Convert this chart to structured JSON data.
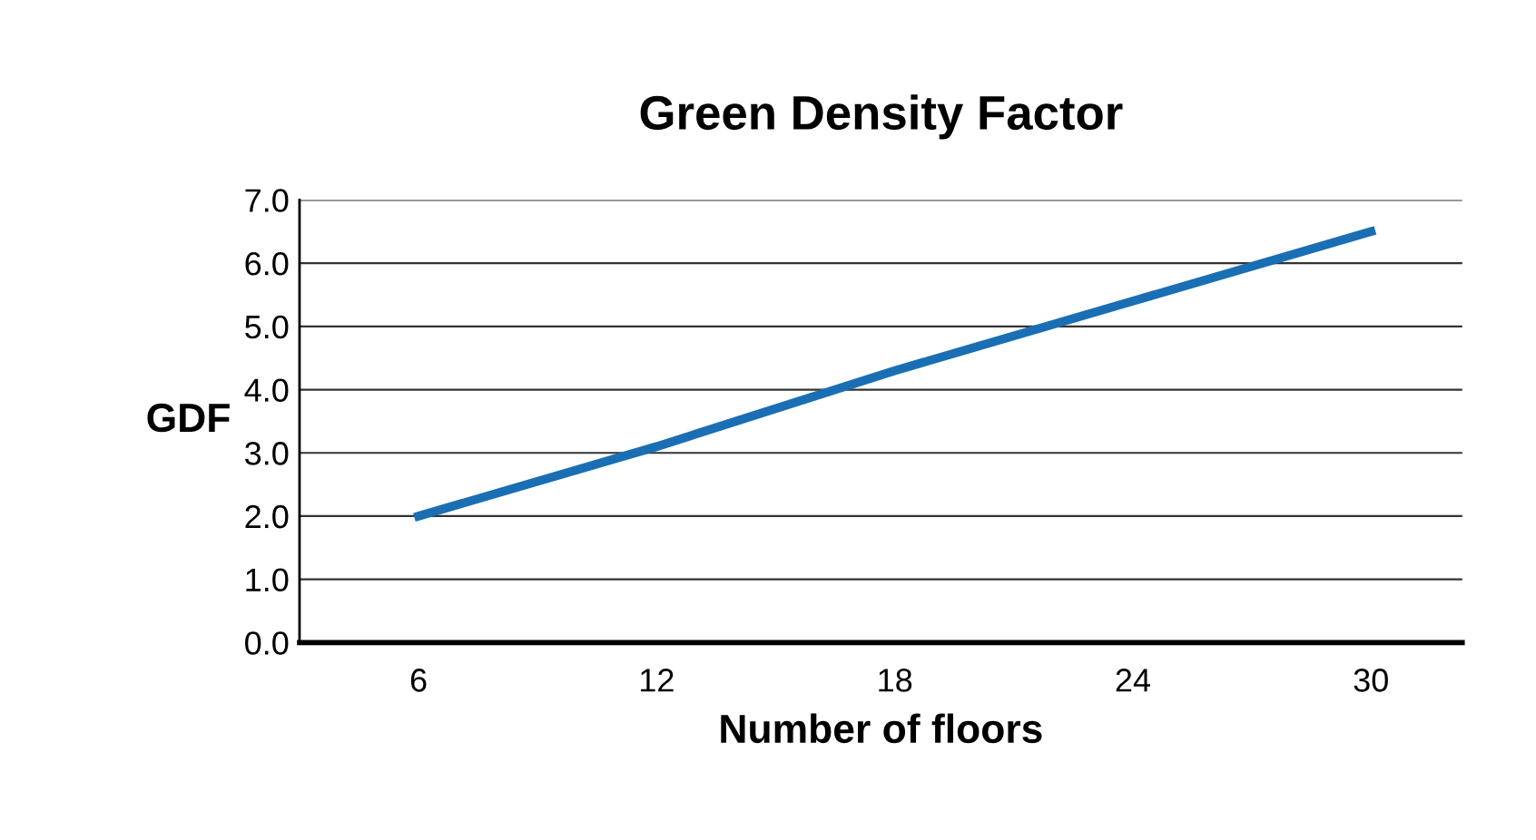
{
  "chart_data": {
    "type": "line",
    "title": "Green Density Factor",
    "xlabel": "Number of floors",
    "ylabel": "GDF",
    "x": [
      6,
      12,
      18,
      24,
      30
    ],
    "series": [
      {
        "color": "#1a6fb4",
        "values": [
          2.0,
          3.1,
          4.3,
          5.4,
          6.5
        ]
      }
    ],
    "xlim": [
      3,
      32.3
    ],
    "xticks": [
      6,
      12,
      18,
      24,
      30
    ],
    "ylim": [
      0,
      7
    ],
    "yticks": [
      {
        "value": 0,
        "label": "0.0"
      },
      {
        "value": 1,
        "label": "1.0"
      },
      {
        "value": 2,
        "label": "2.0"
      },
      {
        "value": 3,
        "label": "3.0"
      },
      {
        "value": 4,
        "label": "4.0"
      },
      {
        "value": 5,
        "label": "5.0"
      },
      {
        "value": 6,
        "label": "6.0"
      },
      {
        "value": 7,
        "label": "7.0"
      }
    ],
    "grid": "y",
    "marker": "none",
    "line_style": "solid"
  }
}
